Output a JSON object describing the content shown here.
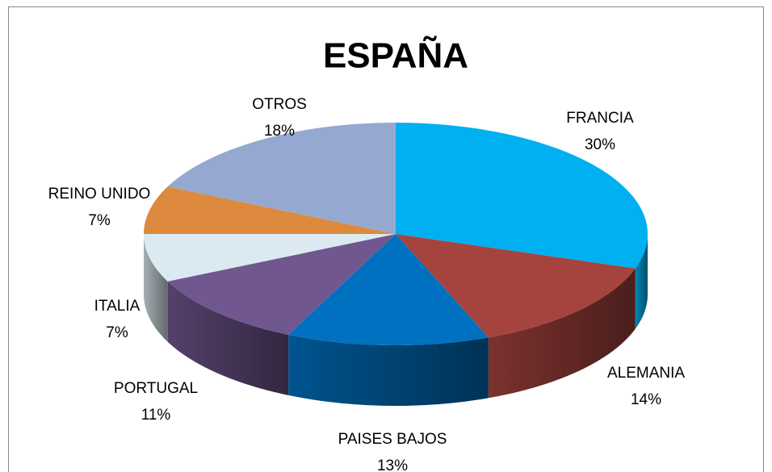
{
  "chart_data": {
    "type": "pie3d",
    "title": "ESPAÑA",
    "categories": [
      "FRANCIA",
      "ALEMANIA",
      "PAISES BAJOS",
      "PORTUGAL",
      "ITALIA",
      "REINO UNIDO",
      "OTROS"
    ],
    "values": [
      30,
      14,
      13,
      11,
      7,
      7,
      18
    ],
    "value_labels": [
      "30%",
      "14%",
      "13%",
      "11%",
      "7%",
      "7%",
      "18%"
    ],
    "colors": [
      "#00b0f0",
      "#a5433f",
      "#0070c0",
      "#71578f",
      "#dbeaf0",
      "#dd8a3e",
      "#95a8d0"
    ]
  }
}
